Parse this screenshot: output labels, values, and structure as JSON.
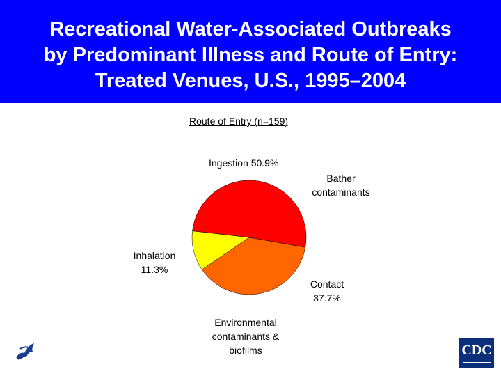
{
  "title": {
    "line1": "Recreational Water-Associated Outbreaks",
    "line2": "by Predominant Illness and Route of Entry:",
    "line3": "Treated Venues, U.S., 1995–2004"
  },
  "colors": {
    "background": "#0000ff",
    "panel": "#ffffff",
    "ingestion": "#ff0000",
    "contact": "#ff6600",
    "inhalation": "#ffff00"
  },
  "labels": {
    "ingestion": "Ingestion 50.9%",
    "bather_line1": "Bather",
    "bather_line2": "contaminants",
    "inhalation_line1": "Inhalation",
    "inhalation_line2": "11.3%",
    "contact_line1": "Contact",
    "contact_line2": "37.7%",
    "env_line1": "Environmental",
    "env_line2": "contaminants &",
    "env_line3": "biofilms"
  },
  "logos": {
    "cdc_text": "CDC",
    "hhs_icon": "hhs-eagle-icon"
  },
  "chart_data": {
    "type": "pie",
    "title": "Route of Entry (n=159)",
    "categories": [
      "Ingestion",
      "Contact",
      "Inhalation"
    ],
    "values": [
      50.9,
      37.7,
      11.3
    ],
    "colors": [
      "#ff0000",
      "#ff6600",
      "#ffff00"
    ],
    "annotations": [
      {
        "text": "Bather contaminants",
        "refers_to": "Ingestion"
      },
      {
        "text": "Environmental contaminants & biofilms",
        "refers_to": "Contact"
      }
    ]
  }
}
